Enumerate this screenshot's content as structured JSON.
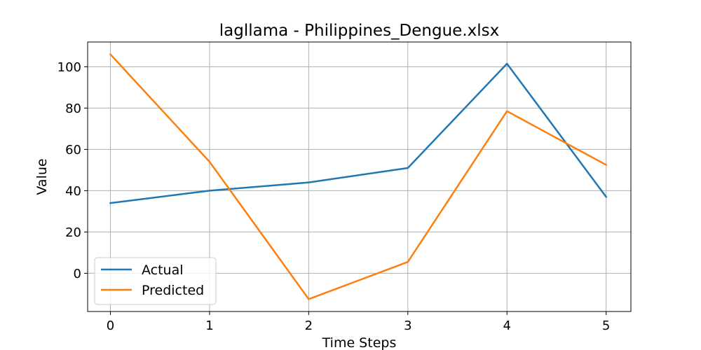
{
  "chart_data": {
    "type": "line",
    "title": "lagllama - Philippines_Dengue.xlsx",
    "xlabel": "Time Steps",
    "ylabel": "Value",
    "x": [
      0,
      1,
      2,
      3,
      4,
      5
    ],
    "xticks": [
      "0",
      "1",
      "2",
      "3",
      "4",
      "5"
    ],
    "yticks": [
      "0",
      "20",
      "40",
      "60",
      "80",
      "100"
    ],
    "xlim": [
      -0.23,
      5.25
    ],
    "ylim": [
      -18.5,
      112
    ],
    "grid": true,
    "legend_position": "lower-left",
    "series": [
      {
        "name": "Actual",
        "color": "#1f77b4",
        "values": [
          34,
          40,
          44,
          51,
          101.5,
          37
        ]
      },
      {
        "name": "Predicted",
        "color": "#ff7f0e",
        "values": [
          106,
          54,
          -12.5,
          5.5,
          78.5,
          52.5
        ]
      }
    ]
  }
}
